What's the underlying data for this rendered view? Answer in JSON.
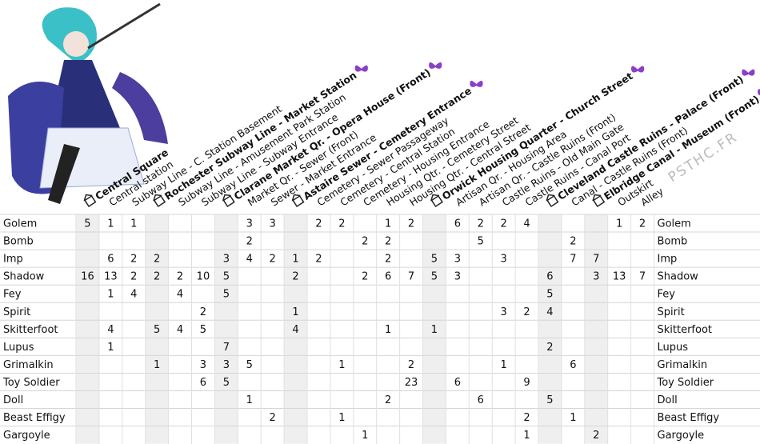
{
  "header_columns": [
    {
      "label": "Central Square",
      "bold": true
    },
    {
      "label": "Central station",
      "bold": false
    },
    {
      "label": "Subway Line - C. Station Basement",
      "bold": false
    },
    {
      "label": "Rochester Subway Line - Market Station",
      "bold": true
    },
    {
      "label": "Subway Line - Amusement Park Station",
      "bold": false
    },
    {
      "label": "Subway Line - Subway Entrance",
      "bold": false
    },
    {
      "label": "Clarane Market Qr. - Opera House (Front)",
      "bold": true
    },
    {
      "label": "Market Qr. - Sewer (Front)",
      "bold": false
    },
    {
      "label": "Sewer - Market Entrance",
      "bold": false
    },
    {
      "label": "Astaire Sewer - Cemetery Entrance",
      "bold": true
    },
    {
      "label": "Cemetery - Sewer Passageway",
      "bold": false
    },
    {
      "label": "Cemetery - Central Station",
      "bold": false
    },
    {
      "label": "Cemetery - Housing Entrance",
      "bold": false
    },
    {
      "label": "Housing Qtr. - Cemetery Street",
      "bold": false
    },
    {
      "label": "Housing Qtr. - Central Street",
      "bold": false
    },
    {
      "label": "Orwick Housing Quarter - Church Street",
      "bold": true
    },
    {
      "label": "Artisan Qr. - Housing Area",
      "bold": false
    },
    {
      "label": "Artisan Qr. - Castle Ruins (Front)",
      "bold": false
    },
    {
      "label": "Castle Ruins - Old Main Gate",
      "bold": false
    },
    {
      "label": "Castle Ruins - Canal Port",
      "bold": false
    },
    {
      "label": "Cleveland Castle Ruins - Palace (Front)",
      "bold": true
    },
    {
      "label": "Canal - Castle Ruins (Front)",
      "bold": false
    },
    {
      "label": "Elbridge Canal - Museum (Front)",
      "bold": true
    },
    {
      "label": "Outskirt",
      "bold": false
    },
    {
      "label": "Alley",
      "bold": false
    }
  ],
  "rows": [
    {
      "name": "Golem",
      "values": [
        5,
        1,
        1,
        null,
        null,
        null,
        null,
        3,
        3,
        null,
        2,
        2,
        null,
        1,
        2,
        null,
        6,
        2,
        2,
        4,
        null,
        null,
        null,
        1,
        2
      ]
    },
    {
      "name": "Bomb",
      "values": [
        null,
        null,
        null,
        null,
        null,
        null,
        null,
        2,
        null,
        null,
        null,
        null,
        2,
        2,
        null,
        null,
        null,
        5,
        null,
        null,
        null,
        2,
        null,
        null,
        null
      ]
    },
    {
      "name": "Imp",
      "values": [
        null,
        6,
        2,
        2,
        null,
        null,
        3,
        4,
        2,
        1,
        2,
        null,
        null,
        2,
        null,
        5,
        3,
        null,
        3,
        null,
        null,
        7,
        7,
        null,
        null
      ]
    },
    {
      "name": "Shadow",
      "values": [
        16,
        13,
        2,
        2,
        2,
        10,
        5,
        null,
        null,
        2,
        null,
        null,
        2,
        6,
        7,
        5,
        3,
        null,
        null,
        null,
        6,
        null,
        3,
        13,
        7
      ]
    },
    {
      "name": "Fey",
      "values": [
        null,
        1,
        4,
        null,
        4,
        null,
        5,
        null,
        null,
        null,
        null,
        null,
        null,
        null,
        null,
        null,
        null,
        null,
        null,
        null,
        5,
        null,
        null,
        null,
        null
      ]
    },
    {
      "name": "Spirit",
      "values": [
        null,
        null,
        null,
        null,
        null,
        2,
        null,
        null,
        null,
        1,
        null,
        null,
        null,
        null,
        null,
        null,
        null,
        null,
        3,
        2,
        4,
        null,
        null,
        null,
        null
      ]
    },
    {
      "name": "Skitterfoot",
      "values": [
        null,
        4,
        null,
        5,
        4,
        5,
        null,
        null,
        null,
        4,
        null,
        null,
        null,
        1,
        null,
        1,
        null,
        null,
        null,
        null,
        null,
        null,
        null,
        null,
        null
      ]
    },
    {
      "name": "Lupus",
      "values": [
        null,
        1,
        null,
        null,
        null,
        null,
        7,
        null,
        null,
        null,
        null,
        null,
        null,
        null,
        null,
        null,
        null,
        null,
        null,
        null,
        2,
        null,
        null,
        null,
        null
      ]
    },
    {
      "name": "Grimalkin",
      "values": [
        null,
        null,
        null,
        1,
        null,
        3,
        3,
        5,
        null,
        null,
        null,
        1,
        null,
        null,
        2,
        null,
        null,
        null,
        1,
        null,
        null,
        6,
        null,
        null,
        null
      ]
    },
    {
      "name": "Toy Soldier",
      "values": [
        null,
        null,
        null,
        null,
        null,
        6,
        5,
        null,
        null,
        null,
        null,
        null,
        null,
        null,
        23,
        null,
        6,
        null,
        null,
        9,
        null,
        null,
        null,
        null,
        null
      ]
    },
    {
      "name": "Doll",
      "values": [
        null,
        null,
        null,
        null,
        null,
        null,
        null,
        1,
        null,
        null,
        null,
        null,
        null,
        2,
        null,
        null,
        null,
        6,
        null,
        null,
        5,
        null,
        null,
        null,
        null
      ]
    },
    {
      "name": "Beast Effigy",
      "values": [
        null,
        null,
        null,
        null,
        null,
        null,
        null,
        null,
        2,
        null,
        null,
        1,
        null,
        null,
        null,
        null,
        null,
        null,
        null,
        2,
        null,
        1,
        null,
        null,
        null
      ]
    },
    {
      "name": "Gargoyle",
      "values": [
        null,
        null,
        null,
        null,
        null,
        null,
        null,
        null,
        null,
        null,
        null,
        null,
        1,
        null,
        null,
        null,
        null,
        null,
        null,
        1,
        null,
        null,
        2,
        null,
        null
      ]
    }
  ],
  "watermark": "PSTHC.FR"
}
